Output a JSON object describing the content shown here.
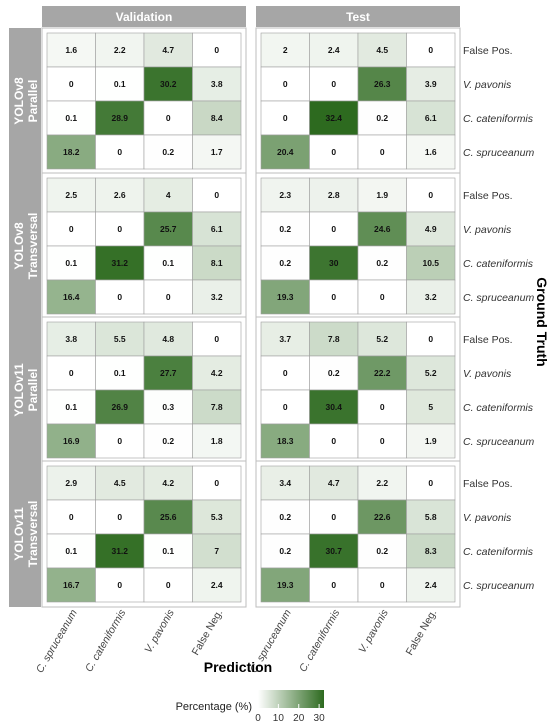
{
  "chart_data": {
    "type": "heatmap",
    "columns": [
      "Validation",
      "Test"
    ],
    "rows": [
      "YOLOv8 Parallel",
      "YOLOv8 Transversal",
      "YOLOv11 Parallel",
      "YOLOv11 Transversal"
    ],
    "row_strip_labels": [
      [
        "YOLOv8",
        "Parallel"
      ],
      [
        "YOLOv8",
        "Transversal"
      ],
      [
        "YOLOv11",
        "Parallel"
      ],
      [
        "YOLOv11",
        "Transversal"
      ]
    ],
    "x_categories": [
      "C. spruceanum",
      "C. cateniformis",
      "V. pavonis",
      "False Neg."
    ],
    "y_categories": [
      "False Pos.",
      "V. pavonis",
      "C. cateniformis",
      "C. spruceanum"
    ],
    "xlabel": "Prediction",
    "ylabel": "Ground Truth",
    "legend": {
      "title": "Percentage (%)",
      "ticks": [
        0,
        10,
        20,
        30
      ],
      "range": [
        0,
        32.4
      ]
    },
    "colors": {
      "low": "#ffffff",
      "high": "#2d6a1f"
    },
    "panels": [
      {
        "row": 0,
        "col": 0,
        "values": [
          [
            1.6,
            2.2,
            4.7,
            0
          ],
          [
            0,
            0.1,
            30.2,
            3.8
          ],
          [
            0.1,
            28.9,
            0,
            8.4
          ],
          [
            18.2,
            0,
            0.2,
            1.7
          ]
        ]
      },
      {
        "row": 0,
        "col": 1,
        "values": [
          [
            2,
            2.4,
            4.5,
            0
          ],
          [
            0,
            0,
            26.3,
            3.9
          ],
          [
            0,
            32.4,
            0.2,
            6.1
          ],
          [
            20.4,
            0,
            0,
            1.6
          ]
        ]
      },
      {
        "row": 1,
        "col": 0,
        "values": [
          [
            2.5,
            2.6,
            4,
            0
          ],
          [
            0,
            0,
            25.7,
            6.1
          ],
          [
            0.1,
            31.2,
            0.1,
            8.1
          ],
          [
            16.4,
            0,
            0,
            3.2
          ]
        ]
      },
      {
        "row": 1,
        "col": 1,
        "values": [
          [
            2.3,
            2.8,
            1.9,
            0
          ],
          [
            0.2,
            0,
            24.6,
            4.9
          ],
          [
            0.2,
            30,
            0.2,
            10.5
          ],
          [
            19.3,
            0,
            0,
            3.2
          ]
        ]
      },
      {
        "row": 2,
        "col": 0,
        "values": [
          [
            3.8,
            5.5,
            4.8,
            0
          ],
          [
            0,
            0.1,
            27.7,
            4.2
          ],
          [
            0.1,
            26.9,
            0.3,
            7.8
          ],
          [
            16.9,
            0,
            0.2,
            1.8
          ]
        ]
      },
      {
        "row": 2,
        "col": 1,
        "values": [
          [
            3.7,
            7.8,
            5.2,
            0
          ],
          [
            0,
            0.2,
            22.2,
            5.2
          ],
          [
            0,
            30.4,
            0,
            5
          ],
          [
            18.3,
            0,
            0,
            1.9
          ]
        ]
      },
      {
        "row": 3,
        "col": 0,
        "values": [
          [
            2.9,
            4.5,
            4.2,
            0
          ],
          [
            0,
            0,
            25.6,
            5.3
          ],
          [
            0.1,
            31.2,
            0.1,
            7
          ],
          [
            16.7,
            0,
            0,
            2.4
          ]
        ]
      },
      {
        "row": 3,
        "col": 1,
        "values": [
          [
            3.4,
            4.7,
            2.2,
            0
          ],
          [
            0.2,
            0,
            22.6,
            5.8
          ],
          [
            0.2,
            30.7,
            0.2,
            8.3
          ],
          [
            19.3,
            0,
            0,
            2.4
          ]
        ]
      }
    ]
  }
}
